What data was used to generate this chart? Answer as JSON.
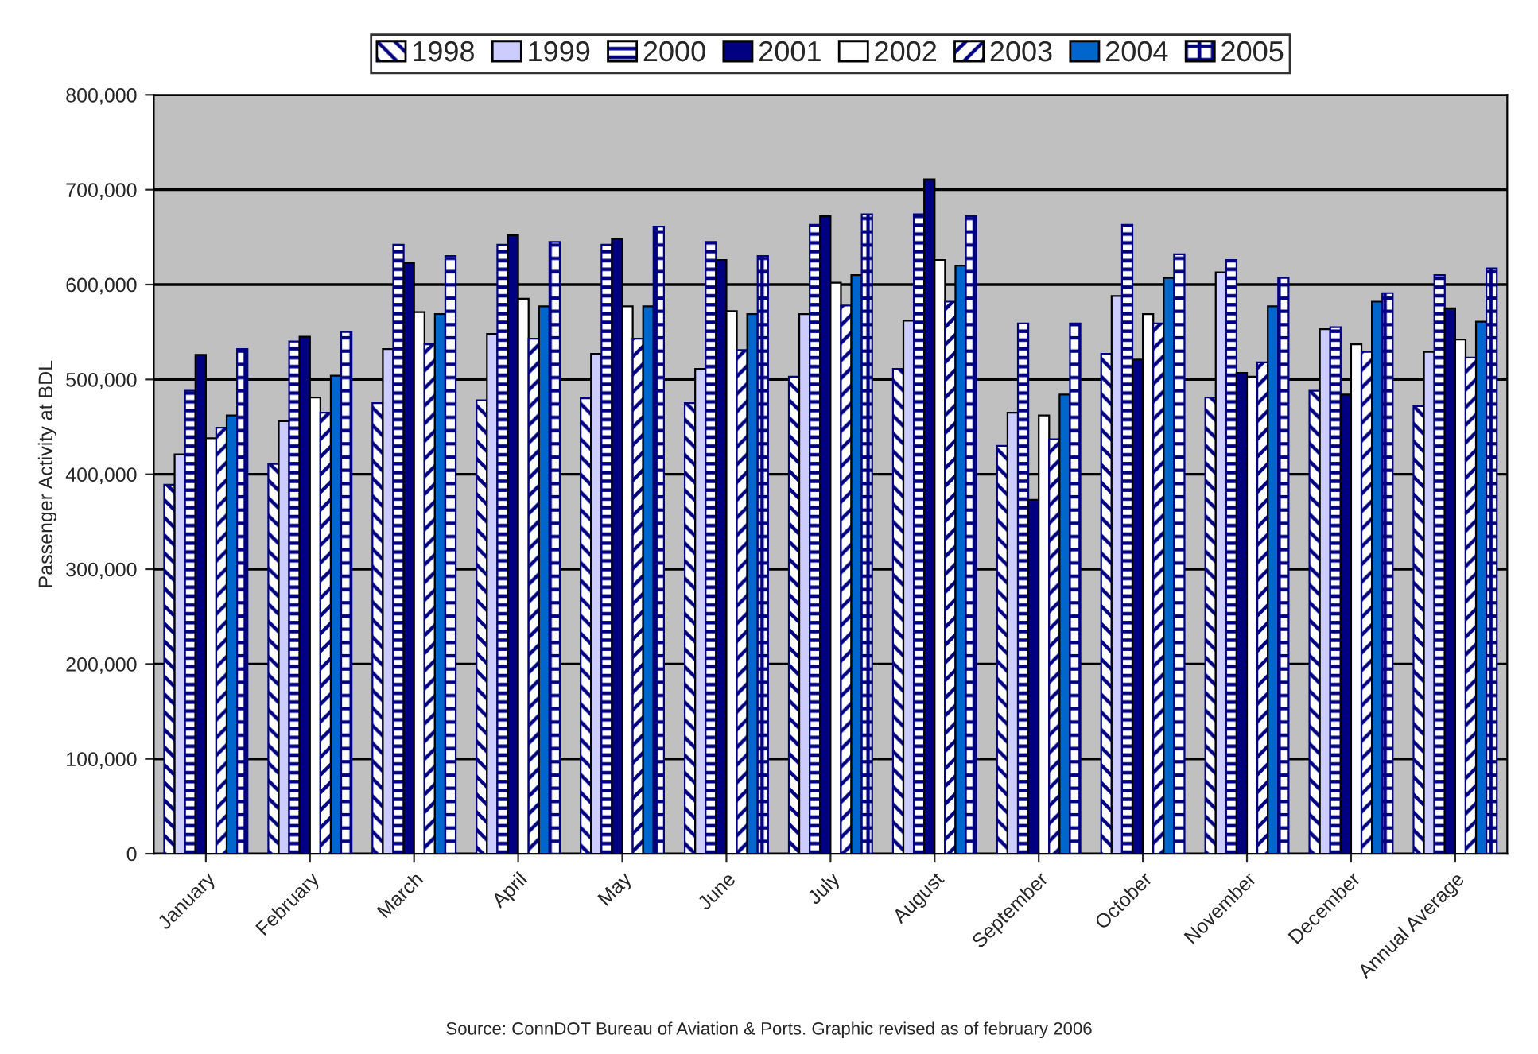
{
  "chart_data": {
    "type": "bar",
    "ylabel": "Passenger Activity at BDL",
    "categories": [
      "January",
      "February",
      "March",
      "April",
      "May",
      "June",
      "July",
      "August",
      "September",
      "October",
      "November",
      "December",
      "Annual Average"
    ],
    "series": [
      {
        "name": "1998",
        "color": "#000080",
        "values": [
          389000,
          411000,
          475000,
          478000,
          480000,
          475000,
          503000,
          511000,
          430000,
          527000,
          481000,
          488000,
          472000
        ]
      },
      {
        "name": "1999",
        "color": "#ccccff",
        "values": [
          421000,
          456000,
          532000,
          548000,
          527000,
          511000,
          569000,
          562000,
          465000,
          588000,
          613000,
          553000,
          529000
        ]
      },
      {
        "name": "2000",
        "color": "#000080",
        "values": [
          488000,
          540000,
          642000,
          642000,
          642000,
          645000,
          663000,
          674000,
          559000,
          663000,
          626000,
          555000,
          610000
        ]
      },
      {
        "name": "2001",
        "color": "#000080",
        "values": [
          526000,
          545000,
          623000,
          652000,
          648000,
          626000,
          672000,
          711000,
          373000,
          521000,
          507000,
          484000,
          575000
        ]
      },
      {
        "name": "2002",
        "color": "#ffffff",
        "values": [
          438000,
          481000,
          571000,
          585000,
          577000,
          572000,
          602000,
          626000,
          462000,
          569000,
          503000,
          537000,
          542000
        ]
      },
      {
        "name": "2003",
        "color": "#000080",
        "values": [
          449000,
          465000,
          537000,
          543000,
          543000,
          531000,
          578000,
          582000,
          437000,
          559000,
          518000,
          529000,
          523000
        ]
      },
      {
        "name": "2004",
        "color": "#0066cc",
        "values": [
          462000,
          504000,
          569000,
          577000,
          577000,
          569000,
          610000,
          620000,
          484000,
          607000,
          577000,
          582000,
          561000
        ]
      },
      {
        "name": "2005",
        "color": "#000080",
        "values": [
          532000,
          550000,
          630000,
          645000,
          661000,
          630000,
          674000,
          672000,
          559000,
          632000,
          607000,
          591000,
          617000
        ]
      }
    ],
    "ylim": [
      0,
      800000
    ],
    "yticks": [
      {
        "value": 0,
        "label": "0"
      },
      {
        "value": 100000,
        "label": "100,000"
      },
      {
        "value": 200000,
        "label": "200,000"
      },
      {
        "value": 300000,
        "label": "300,000"
      },
      {
        "value": 400000,
        "label": "400,000"
      },
      {
        "value": 500000,
        "label": "500,000"
      },
      {
        "value": 600000,
        "label": "600,000"
      },
      {
        "value": 700000,
        "label": "700,000"
      },
      {
        "value": 800000,
        "label": "800,000"
      }
    ],
    "grid": "y",
    "legend": "top",
    "annotations": [
      "Source: ConnDOT Bureau of Aviation & Ports. Graphic revised as of february 2006"
    ]
  }
}
